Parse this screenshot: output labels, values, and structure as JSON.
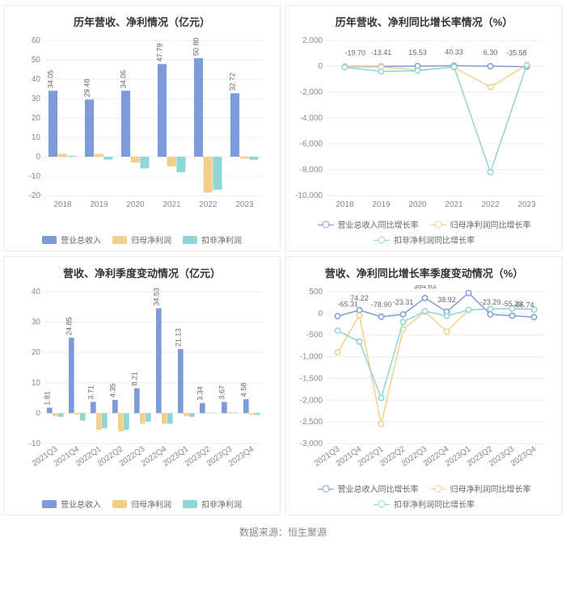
{
  "colors": {
    "series1": "#7e9bd9",
    "series2": "#f4cf8a",
    "series3": "#8fd7d4",
    "grid": "#eeeeee",
    "axis": "#cccccc",
    "tick_text": "#888888",
    "bar_label": "#666666",
    "title": "#333333",
    "bg": "#ffffff"
  },
  "footer": "数据来源：恒生聚源",
  "panels": {
    "tl": {
      "title": "历年营收、净利情况（亿元）",
      "type": "bar",
      "categories": [
        "2018",
        "2019",
        "2020",
        "2021",
        "2022",
        "2023"
      ],
      "ylim": [
        -20,
        60
      ],
      "ytick_step": 10,
      "label_series_index": 0,
      "series": [
        {
          "name": "营业总收入",
          "color_key": "series1",
          "values": [
            34.05,
            29.48,
            34.06,
            47.79,
            50.8,
            32.72
          ]
        },
        {
          "name": "归母净利润",
          "color_key": "series2",
          "values": [
            1.5,
            1.5,
            -3.0,
            -5.0,
            -18.5,
            -1.0
          ]
        },
        {
          "name": "扣非净利润",
          "color_key": "series3",
          "values": [
            0.5,
            -1.5,
            -6.0,
            -8.0,
            -17.0,
            -1.5
          ]
        }
      ],
      "legend_style": "bar"
    },
    "tr": {
      "title": "历年营收、净利同比增长率情况（%）",
      "type": "line",
      "categories": [
        "2018",
        "2019",
        "2020",
        "2021",
        "2022",
        "2023"
      ],
      "ylim": [
        -10000,
        2000
      ],
      "ytick_step": 2000,
      "label_series_index": 0,
      "label_offset": -14,
      "series": [
        {
          "name": "营业总收入同比增长率",
          "color_key": "series1",
          "values": [
            -19.7,
            -13.41,
            15.53,
            40.33,
            6.3,
            -35.58
          ]
        },
        {
          "name": "归母净利润同比增长率",
          "color_key": "series2",
          "values": [
            -50,
            -60,
            -300,
            -80,
            -1600,
            90
          ]
        },
        {
          "name": "扣非净利润同比增长率",
          "color_key": "series3",
          "values": [
            -80,
            -400,
            -350,
            -40,
            -8200,
            90
          ]
        }
      ],
      "legend_style": "line"
    },
    "bl": {
      "title": "营收、净利季度变动情况（亿元）",
      "type": "bar",
      "categories": [
        "2021Q3",
        "2021Q4",
        "2022Q1",
        "2022Q2",
        "2022Q3",
        "2022Q4",
        "2023Q1",
        "2023Q2",
        "2023Q3",
        "2023Q4"
      ],
      "ylim": [
        -10,
        40
      ],
      "ytick_step": 10,
      "rotate_x": true,
      "label_series_index": 0,
      "series": [
        {
          "name": "营业总收入",
          "color_key": "series1",
          "values": [
            1.81,
            24.85,
            3.71,
            4.35,
            8.21,
            34.53,
            21.13,
            3.34,
            3.67,
            4.58
          ]
        },
        {
          "name": "归母净利润",
          "color_key": "series2",
          "values": [
            -1.0,
            -0.5,
            -5.5,
            -6.0,
            -3.5,
            -3.5,
            -1.0,
            0.2,
            0.3,
            -0.5
          ]
        },
        {
          "name": "扣非净利润",
          "color_key": "series3",
          "values": [
            -1.2,
            -2.5,
            -5.0,
            -5.5,
            -2.8,
            -3.5,
            -1.2,
            0.1,
            0.2,
            -0.6
          ]
        }
      ],
      "legend_style": "bar"
    },
    "br": {
      "title": "营收、净利同比增长率季度变动情况（%）",
      "type": "line",
      "categories": [
        "2021Q3",
        "2021Q4",
        "2022Q1",
        "2022Q2",
        "2022Q3",
        "2022Q4",
        "2023Q1",
        "2023Q2",
        "2023Q3",
        "2023Q4"
      ],
      "ylim": [
        -3000,
        500
      ],
      "ytick_step": 500,
      "rotate_x": true,
      "label_series_index": 0,
      "label_offset": -12,
      "series": [
        {
          "name": "营业总收入同比增长率",
          "color_key": "series1",
          "values": [
            -65.31,
            74.22,
            -78.9,
            -23.31,
            354.63,
            38.92,
            469.19,
            -23.29,
            -55.23,
            -86.74
          ]
        },
        {
          "name": "归母净利润同比增长率",
          "color_key": "series2",
          "values": [
            -900,
            -50,
            -2550,
            -370,
            40,
            -420,
            80,
            100,
            110,
            90
          ]
        },
        {
          "name": "扣非净利润同比增长率",
          "color_key": "series3",
          "values": [
            -400,
            -650,
            -1950,
            -200,
            50,
            -60,
            80,
            100,
            110,
            90
          ]
        }
      ],
      "legend_style": "line"
    }
  }
}
